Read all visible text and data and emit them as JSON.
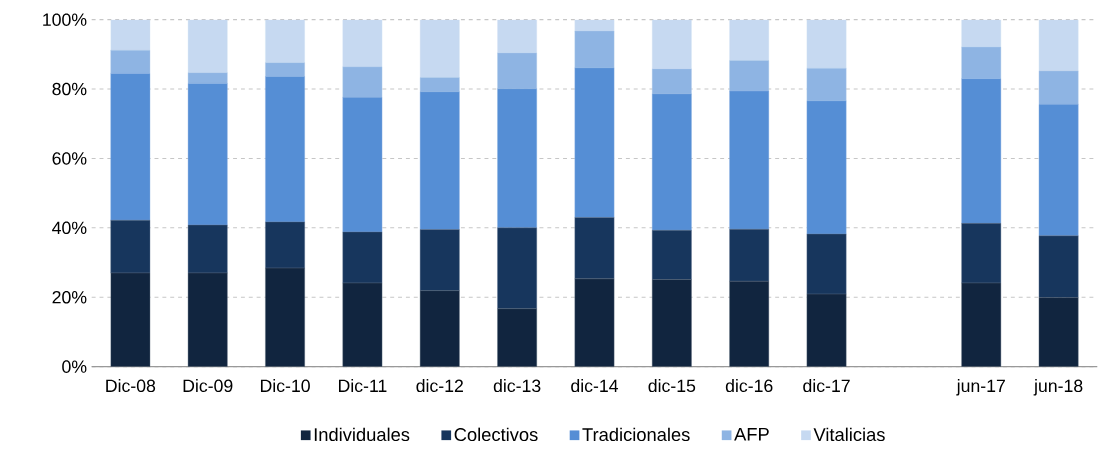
{
  "chart_data": {
    "type": "bar",
    "stacked": true,
    "categories": [
      "Dic-08",
      "Dic-09",
      "Dic-10",
      "Dic-11",
      "dic-12",
      "dic-13",
      "dic-14",
      "dic-15",
      "dic-16",
      "dic-17",
      null,
      "jun-17",
      "jun-18"
    ],
    "series": [
      {
        "name": "Individuales",
        "color": "#11253f",
        "values": [
          27.0,
          27.0,
          28.4,
          24.1,
          21.9,
          16.7,
          25.3,
          25.1,
          24.6,
          20.9,
          null,
          24.1,
          19.9
        ]
      },
      {
        "name": "Colectivos",
        "color": "#17365d",
        "values": [
          15.2,
          13.8,
          13.3,
          14.7,
          17.6,
          23.3,
          17.7,
          14.2,
          15.0,
          17.3,
          null,
          17.2,
          17.8
        ]
      },
      {
        "name": "Tradicionales",
        "color": "#558ed5",
        "values": [
          42.3,
          40.8,
          41.9,
          38.8,
          39.7,
          40.1,
          43.1,
          39.3,
          39.8,
          38.4,
          null,
          41.7,
          37.9
        ]
      },
      {
        "name": "AFP",
        "color": "#8eb4e3",
        "values": [
          6.7,
          3.1,
          4.0,
          8.8,
          4.1,
          10.3,
          10.6,
          7.2,
          8.8,
          9.4,
          null,
          9.1,
          9.6
        ]
      },
      {
        "name": "Vitalicias",
        "color": "#c6d9f1",
        "values": [
          8.8,
          15.3,
          12.4,
          13.6,
          16.7,
          9.6,
          3.3,
          14.2,
          11.8,
          14.0,
          null,
          7.9,
          14.8
        ]
      }
    ],
    "ylim": [
      0,
      100
    ],
    "yticks": [
      {
        "value": 0,
        "label": "0%"
      },
      {
        "value": 20,
        "label": "20%"
      },
      {
        "value": 40,
        "label": "40%"
      },
      {
        "value": 60,
        "label": "60%"
      },
      {
        "value": 80,
        "label": "80%"
      },
      {
        "value": 100,
        "label": "100%"
      }
    ],
    "grid": "y",
    "legend": "bottom"
  }
}
